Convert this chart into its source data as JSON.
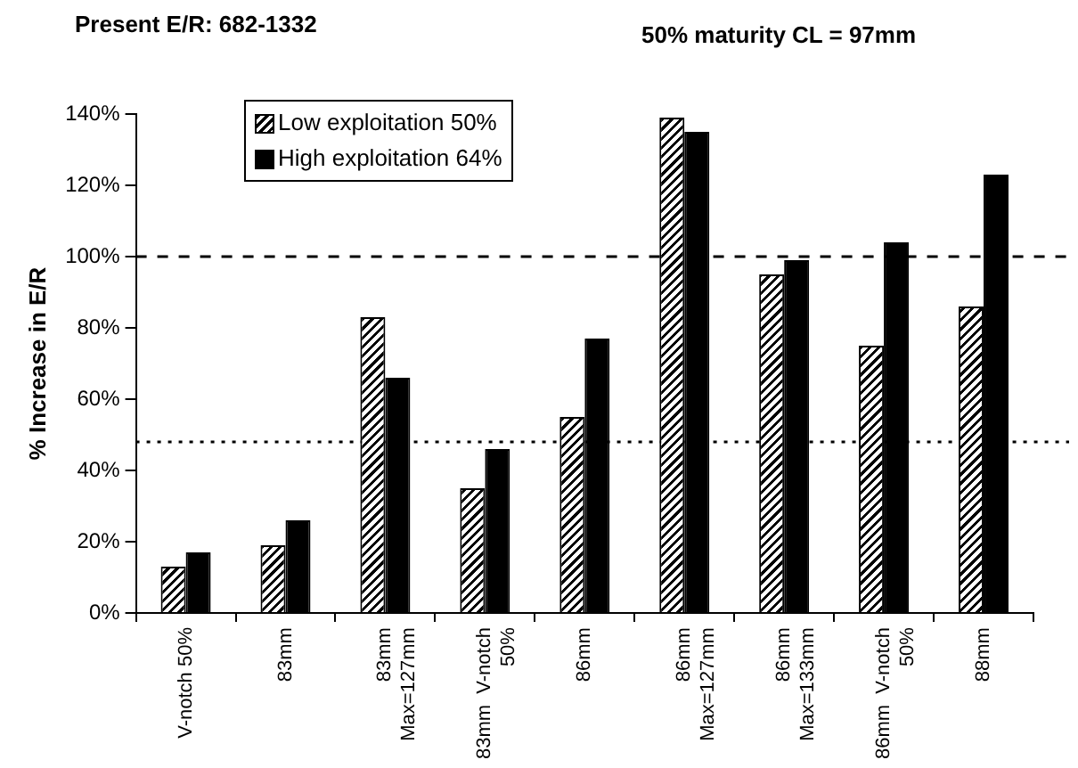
{
  "chart_data": {
    "type": "bar",
    "title": "Present E/R:  682-1332",
    "subtitle": "50% maturity CL = 97mm",
    "ylabel": "% Increase in E/R",
    "categories": [
      "V-notch 50%",
      "83mm",
      "83mm\nMax=127mm",
      "83mm  V-notch\n50%",
      "86mm",
      "86mm\nMax=127mm",
      "86mm\nMax=133mm",
      "86mm  V-notch\n50%",
      "88mm"
    ],
    "series": [
      {
        "name": "Low exploitation  50%",
        "color": "#000000",
        "values": [
          13,
          19,
          83,
          35,
          55,
          139,
          95,
          75,
          86
        ]
      },
      {
        "name": "High exploitation  64%",
        "color": "#000000",
        "values": [
          17,
          26,
          66,
          46,
          77,
          135,
          99,
          104,
          123
        ]
      }
    ],
    "ylim": [
      0,
      140
    ],
    "yticks": [
      {
        "value": 0,
        "label": "0%"
      },
      {
        "value": 20,
        "label": "20%"
      },
      {
        "value": 40,
        "label": "40%"
      },
      {
        "value": 60,
        "label": "60%"
      },
      {
        "value": 80,
        "label": "80%"
      },
      {
        "value": 100,
        "label": "100%"
      },
      {
        "value": 120,
        "label": "120%"
      },
      {
        "value": 140,
        "label": "140%"
      }
    ],
    "ref_lines": [
      {
        "axis": "y",
        "value": 100,
        "line_style": "dashed"
      },
      {
        "axis": "y",
        "value": 48,
        "line_style": "dotted"
      }
    ],
    "grid": false,
    "legend": "top left"
  }
}
